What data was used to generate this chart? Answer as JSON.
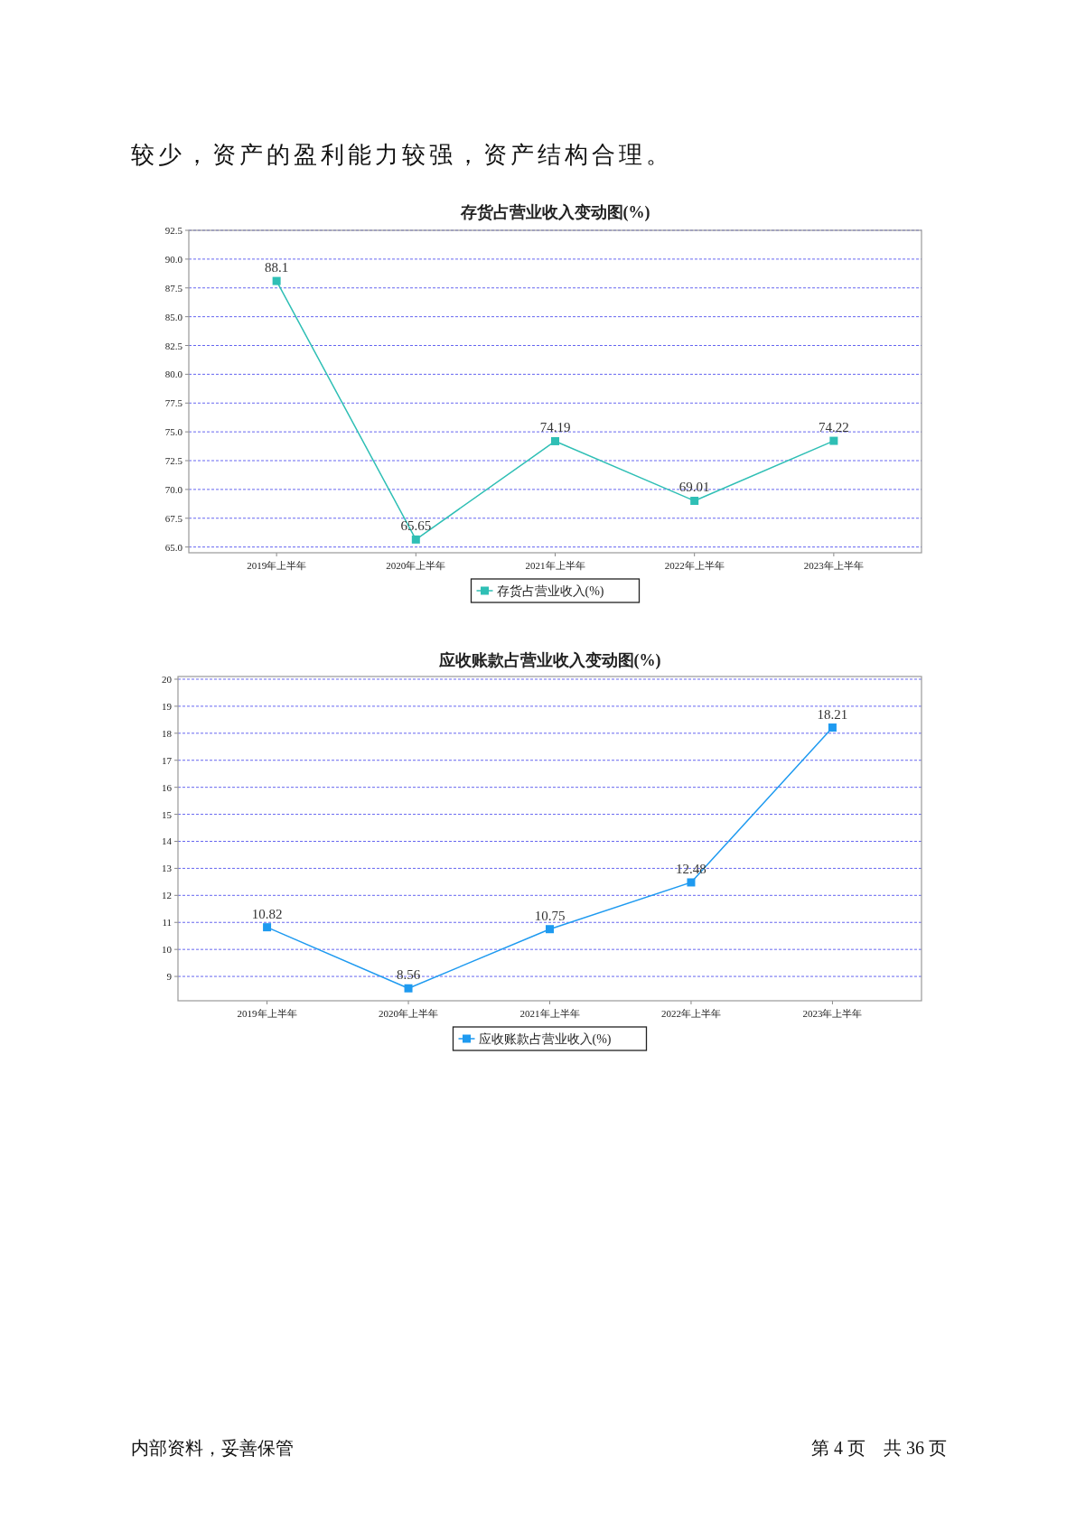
{
  "chart_data": [
    {
      "type": "line",
      "title": "存货占营业收入变动图(%)",
      "categories": [
        "2019年上半年",
        "2020年上半年",
        "2021年上半年",
        "2022年上半年",
        "2023年上半年"
      ],
      "series": [
        {
          "name": "存货占营业收入(%)",
          "color": "#2fbfb5",
          "values": [
            88.1,
            65.65,
            74.19,
            69.01,
            74.22
          ]
        }
      ],
      "ylim": [
        64.5,
        92.5
      ],
      "yticks": [
        {
          "value": 65,
          "label": "65.0"
        },
        67.5,
        {
          "value": 70,
          "label": "70.0"
        },
        72.5,
        {
          "value": 75,
          "label": "75.0"
        },
        77.5,
        {
          "value": 80,
          "label": "80.0"
        },
        82.5,
        {
          "value": 85,
          "label": "85.0"
        },
        87.5,
        {
          "value": 90,
          "label": "90.0"
        },
        92.5
      ],
      "grid": "y",
      "legend": "bottom",
      "marker": "square",
      "data_labels": true,
      "annotations": [
        "较少，资产的盈利能力较强，资产结构合理。"
      ]
    },
    {
      "type": "line",
      "title": "应收账款占营业收入变动图(%)",
      "categories": [
        "2019年上半年",
        "2020年上半年",
        "2021年上半年",
        "2022年上半年",
        "2023年上半年"
      ],
      "series": [
        {
          "name": "应收账款占营业收入(%)",
          "color": "#1e9af0",
          "values": [
            10.82,
            8.56,
            10.75,
            12.48,
            18.21
          ]
        }
      ],
      "ylim": [
        8.1,
        20.1
      ],
      "yticks": [
        9,
        10,
        11,
        12,
        13,
        14,
        15,
        16,
        17,
        18,
        19,
        20
      ],
      "grid": "y",
      "legend": "bottom",
      "marker": "square",
      "data_labels": true,
      "annotations": [
        "内部资料，妥善保管",
        "第 4 页　共 36 页"
      ]
    }
  ]
}
